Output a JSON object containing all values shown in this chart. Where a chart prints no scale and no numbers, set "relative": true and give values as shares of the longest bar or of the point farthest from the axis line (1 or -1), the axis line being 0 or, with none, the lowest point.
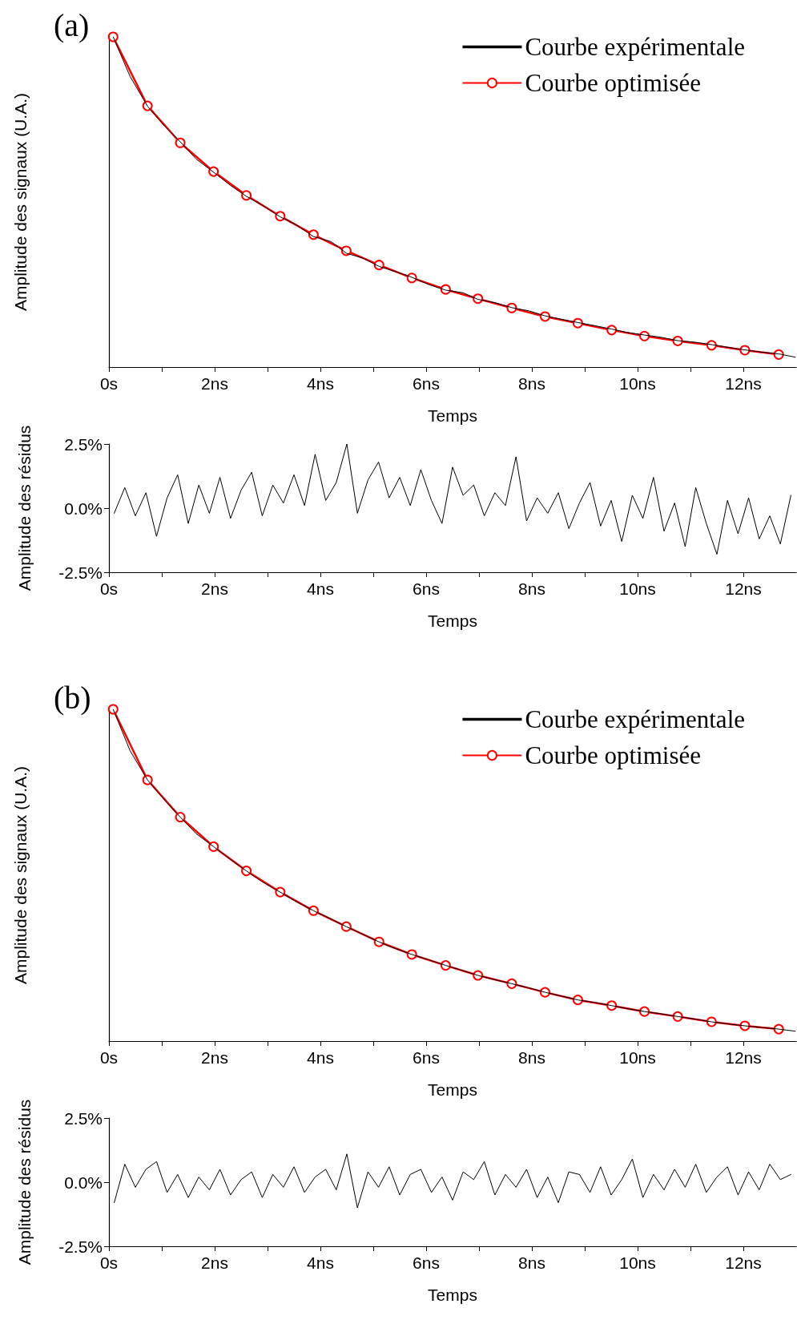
{
  "chart_data": [
    {
      "type": "line",
      "title": "(a)",
      "xlabel": "Temps",
      "ylabel": "Amplitude des signaux (U.A.)",
      "relative": true,
      "legend": "top right",
      "line_style": "solid",
      "xlim": [
        0,
        13
      ],
      "xticks": [
        {
          "value": 0,
          "label": "0s"
        },
        {
          "value": 1,
          "label": null
        },
        {
          "value": 2,
          "label": "2ns"
        },
        {
          "value": 3,
          "label": null
        },
        {
          "value": 4,
          "label": "4ns"
        },
        {
          "value": 5,
          "label": null
        },
        {
          "value": 6,
          "label": "6ns"
        },
        {
          "value": 7,
          "label": null
        },
        {
          "value": 8,
          "label": "8ns"
        },
        {
          "value": 9,
          "label": null
        },
        {
          "value": 10,
          "label": "10ns"
        },
        {
          "value": 11,
          "label": null
        },
        {
          "value": 12,
          "label": "12ns"
        }
      ],
      "series": [
        {
          "name": "Courbe expérimentale",
          "color": "#000000",
          "marker": "none",
          "x": [
            0.08,
            0.4,
            0.73,
            1.05,
            1.35,
            1.65,
            1.98,
            2.3,
            2.6,
            2.9,
            3.24,
            3.55,
            3.87,
            4.2,
            4.49,
            4.8,
            5.11,
            5.4,
            5.73,
            6.05,
            6.37,
            6.7,
            6.98,
            7.3,
            7.62,
            7.95,
            8.25,
            8.55,
            8.87,
            9.2,
            9.51,
            9.8,
            10.13,
            10.45,
            10.76,
            11.1,
            11.4,
            11.7,
            12.03,
            12.35,
            12.67,
            12.98
          ],
          "values": [
            1,
            0.88,
            0.79,
            0.73,
            0.682,
            0.63,
            0.59,
            0.55,
            0.517,
            0.49,
            0.455,
            0.43,
            0.395,
            0.38,
            0.345,
            0.33,
            0.305,
            0.29,
            0.272,
            0.25,
            0.233,
            0.225,
            0.205,
            0.195,
            0.18,
            0.17,
            0.155,
            0.145,
            0.135,
            0.125,
            0.115,
            0.105,
            0.097,
            0.09,
            0.08,
            0.075,
            0.068,
            0.06,
            0.052,
            0.045,
            0.04,
            0.03
          ]
        },
        {
          "name": "Courbe optimisée",
          "color": "#ff0000",
          "marker": "circle",
          "x": [
            0.08,
            0.73,
            1.35,
            1.98,
            2.6,
            3.24,
            3.87,
            4.49,
            5.11,
            5.73,
            6.37,
            6.98,
            7.62,
            8.25,
            8.87,
            9.51,
            10.13,
            10.76,
            11.4,
            12.03,
            12.67
          ],
          "values": [
            1,
            0.791,
            0.679,
            0.592,
            0.52,
            0.457,
            0.401,
            0.352,
            0.309,
            0.27,
            0.235,
            0.207,
            0.179,
            0.153,
            0.133,
            0.112,
            0.094,
            0.079,
            0.066,
            0.051,
            0.038
          ]
        }
      ]
    },
    {
      "type": "line",
      "xlabel": "Temps",
      "ylabel": "Amplitude des résidus",
      "line_style": "solid",
      "xlim": [
        0,
        13
      ],
      "xticks": [
        {
          "value": 0,
          "label": "0s"
        },
        {
          "value": 1,
          "label": null
        },
        {
          "value": 2,
          "label": "2ns"
        },
        {
          "value": 3,
          "label": null
        },
        {
          "value": 4,
          "label": "4ns"
        },
        {
          "value": 5,
          "label": null
        },
        {
          "value": 6,
          "label": "6ns"
        },
        {
          "value": 7,
          "label": null
        },
        {
          "value": 8,
          "label": "8ns"
        },
        {
          "value": 9,
          "label": null
        },
        {
          "value": 10,
          "label": "10ns"
        },
        {
          "value": 11,
          "label": null
        },
        {
          "value": 12,
          "label": "12ns"
        }
      ],
      "ylim": [
        -2.5,
        2.5
      ],
      "yticks": [
        {
          "value": -2.5,
          "label": "-2.5%"
        },
        {
          "value": 0,
          "label": "0.0%"
        },
        {
          "value": 2.5,
          "label": "2.5%"
        }
      ],
      "series": [
        {
          "color": "#000000",
          "marker": "none",
          "x": [
            0.1,
            0.3,
            0.5,
            0.7,
            0.9,
            1.1,
            1.3,
            1.5,
            1.7,
            1.9,
            2.1,
            2.3,
            2.5,
            2.7,
            2.9,
            3.1,
            3.3,
            3.5,
            3.7,
            3.9,
            4.1,
            4.3,
            4.5,
            4.7,
            4.9,
            5.1,
            5.3,
            5.5,
            5.7,
            5.9,
            6.1,
            6.3,
            6.5,
            6.7,
            6.9,
            7.1,
            7.3,
            7.5,
            7.7,
            7.9,
            8.1,
            8.3,
            8.5,
            8.7,
            8.9,
            9.1,
            9.3,
            9.5,
            9.7,
            9.9,
            10.1,
            10.3,
            10.5,
            10.7,
            10.9,
            11.1,
            11.3,
            11.5,
            11.7,
            11.9,
            12.1,
            12.3,
            12.5,
            12.7,
            12.9
          ],
          "values": [
            -0.2,
            0.8,
            -0.3,
            0.6,
            -1.1,
            0.4,
            1.3,
            -0.6,
            0.9,
            -0.2,
            1.2,
            -0.4,
            0.7,
            1.4,
            -0.3,
            0.9,
            0.2,
            1.3,
            0.1,
            2.1,
            0.3,
            1.0,
            2.5,
            -0.2,
            1.1,
            1.8,
            0.4,
            1.2,
            0.1,
            1.5,
            0.3,
            -0.6,
            1.6,
            0.5,
            0.9,
            -0.3,
            0.6,
            0.1,
            2.0,
            -0.5,
            0.4,
            -0.2,
            0.6,
            -0.8,
            0.2,
            1.0,
            -0.7,
            0.3,
            -1.3,
            0.5,
            -0.4,
            1.2,
            -0.9,
            0.2,
            -1.5,
            0.8,
            -0.6,
            -1.8,
            0.3,
            -1.0,
            0.4,
            -1.2,
            -0.3,
            -1.4,
            0.5
          ]
        }
      ]
    },
    {
      "type": "line",
      "title": "(b)",
      "xlabel": "Temps",
      "ylabel": "Amplitude des signaux (U.A.)",
      "relative": true,
      "legend": "top right",
      "line_style": "solid",
      "xlim": [
        0,
        13
      ],
      "xticks": [
        {
          "value": 0,
          "label": "0s"
        },
        {
          "value": 1,
          "label": null
        },
        {
          "value": 2,
          "label": "2ns"
        },
        {
          "value": 3,
          "label": null
        },
        {
          "value": 4,
          "label": "4ns"
        },
        {
          "value": 5,
          "label": null
        },
        {
          "value": 6,
          "label": "6ns"
        },
        {
          "value": 7,
          "label": null
        },
        {
          "value": 8,
          "label": "8ns"
        },
        {
          "value": 9,
          "label": null
        },
        {
          "value": 10,
          "label": "10ns"
        },
        {
          "value": 11,
          "label": null
        },
        {
          "value": 12,
          "label": "12ns"
        }
      ],
      "series": [
        {
          "name": "Courbe expérimentale",
          "color": "#000000",
          "marker": "none",
          "x": [
            0.08,
            0.4,
            0.73,
            1.05,
            1.35,
            1.65,
            1.98,
            2.3,
            2.6,
            2.9,
            3.24,
            3.55,
            3.87,
            4.2,
            4.49,
            4.8,
            5.11,
            5.4,
            5.73,
            6.05,
            6.37,
            6.7,
            6.98,
            7.3,
            7.62,
            7.95,
            8.25,
            8.55,
            8.87,
            9.2,
            9.51,
            9.8,
            10.13,
            10.45,
            10.76,
            11.1,
            11.4,
            11.7,
            12.03,
            12.35,
            12.67,
            12.98
          ],
          "values": [
            1,
            0.875,
            0.787,
            0.727,
            0.675,
            0.625,
            0.586,
            0.547,
            0.513,
            0.48,
            0.449,
            0.42,
            0.393,
            0.368,
            0.345,
            0.322,
            0.299,
            0.28,
            0.261,
            0.245,
            0.228,
            0.212,
            0.198,
            0.185,
            0.173,
            0.16,
            0.147,
            0.136,
            0.124,
            0.116,
            0.107,
            0.098,
            0.089,
            0.082,
            0.074,
            0.066,
            0.058,
            0.052,
            0.046,
            0.041,
            0.036,
            0.03
          ]
        },
        {
          "name": "Courbe optimisée",
          "color": "#ff0000",
          "marker": "circle",
          "x": [
            0.08,
            0.73,
            1.35,
            1.98,
            2.6,
            3.24,
            3.87,
            4.49,
            5.11,
            5.73,
            6.37,
            6.98,
            7.62,
            8.25,
            8.87,
            9.51,
            10.13,
            10.76,
            11.4,
            12.03,
            12.67
          ],
          "values": [
            1,
            0.787,
            0.675,
            0.586,
            0.513,
            0.449,
            0.393,
            0.345,
            0.299,
            0.261,
            0.228,
            0.198,
            0.173,
            0.147,
            0.124,
            0.107,
            0.089,
            0.074,
            0.058,
            0.046,
            0.036
          ]
        }
      ]
    },
    {
      "type": "line",
      "xlabel": "Temps",
      "ylabel": "Amplitude des résidus",
      "line_style": "solid",
      "xlim": [
        0,
        13
      ],
      "xticks": [
        {
          "value": 0,
          "label": "0s"
        },
        {
          "value": 1,
          "label": null
        },
        {
          "value": 2,
          "label": "2ns"
        },
        {
          "value": 3,
          "label": null
        },
        {
          "value": 4,
          "label": "4ns"
        },
        {
          "value": 5,
          "label": null
        },
        {
          "value": 6,
          "label": "6ns"
        },
        {
          "value": 7,
          "label": null
        },
        {
          "value": 8,
          "label": "8ns"
        },
        {
          "value": 9,
          "label": null
        },
        {
          "value": 10,
          "label": "10ns"
        },
        {
          "value": 11,
          "label": null
        },
        {
          "value": 12,
          "label": "12ns"
        }
      ],
      "ylim": [
        -2.5,
        2.5
      ],
      "yticks": [
        {
          "value": -2.5,
          "label": "-2.5%"
        },
        {
          "value": 0,
          "label": "0.0%"
        },
        {
          "value": 2.5,
          "label": "2.5%"
        }
      ],
      "series": [
        {
          "color": "#000000",
          "marker": "none",
          "x": [
            0.1,
            0.3,
            0.5,
            0.7,
            0.9,
            1.1,
            1.3,
            1.5,
            1.7,
            1.9,
            2.1,
            2.3,
            2.5,
            2.7,
            2.9,
            3.1,
            3.3,
            3.5,
            3.7,
            3.9,
            4.1,
            4.3,
            4.5,
            4.7,
            4.9,
            5.1,
            5.3,
            5.5,
            5.7,
            5.9,
            6.1,
            6.3,
            6.5,
            6.7,
            6.9,
            7.1,
            7.3,
            7.5,
            7.7,
            7.9,
            8.1,
            8.3,
            8.5,
            8.7,
            8.9,
            9.1,
            9.3,
            9.5,
            9.7,
            9.9,
            10.1,
            10.3,
            10.5,
            10.7,
            10.9,
            11.1,
            11.3,
            11.5,
            11.7,
            11.9,
            12.1,
            12.3,
            12.5,
            12.7,
            12.9
          ],
          "values": [
            -0.8,
            0.7,
            -0.2,
            0.5,
            0.8,
            -0.4,
            0.3,
            -0.6,
            0.2,
            -0.3,
            0.5,
            -0.5,
            0.1,
            0.4,
            -0.6,
            0.3,
            -0.2,
            0.6,
            -0.4,
            0.2,
            0.5,
            -0.3,
            1.1,
            -1.0,
            0.4,
            -0.2,
            0.6,
            -0.5,
            0.3,
            0.5,
            -0.4,
            0.2,
            -0.7,
            0.4,
            0.1,
            0.8,
            -0.5,
            0.3,
            -0.2,
            0.5,
            -0.6,
            0.2,
            -0.8,
            0.4,
            0.3,
            -0.4,
            0.6,
            -0.5,
            0.1,
            0.9,
            -0.6,
            0.3,
            -0.3,
            0.5,
            -0.2,
            0.7,
            -0.4,
            0.2,
            0.6,
            -0.5,
            0.4,
            -0.3,
            0.7,
            0.1,
            0.3
          ]
        }
      ]
    }
  ]
}
